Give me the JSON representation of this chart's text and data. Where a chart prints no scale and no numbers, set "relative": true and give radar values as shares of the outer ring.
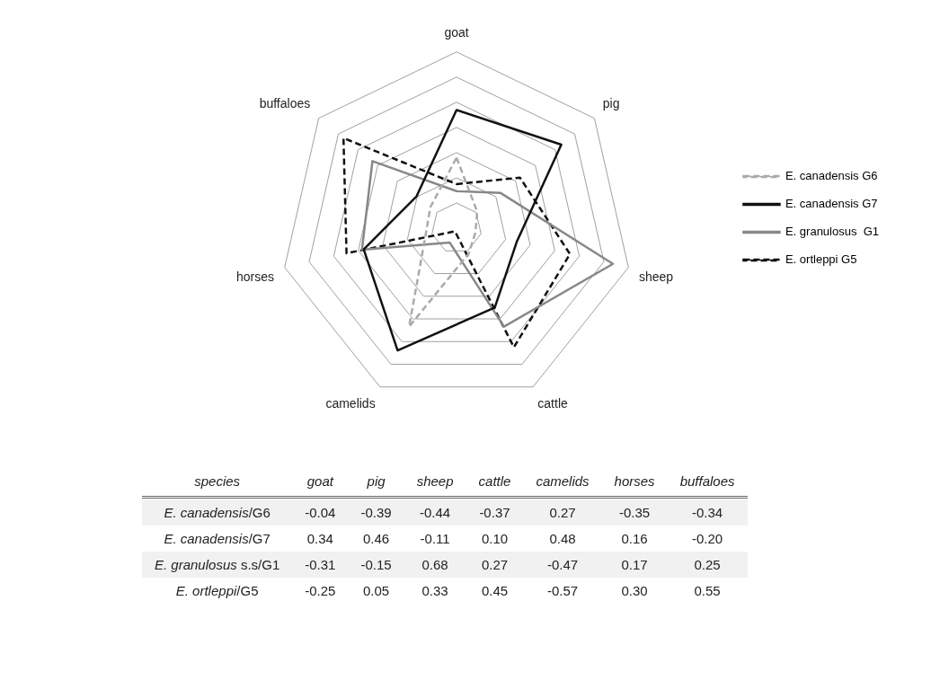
{
  "chart_data": [
    {
      "type": "radar",
      "relative": true,
      "categories": [
        "goat",
        "pig",
        "sheep",
        "cattle",
        "camelids",
        "horses",
        "buffaloes"
      ],
      "series": [
        {
          "name": "E. canadensis G6",
          "color": "#aaaaaa",
          "line_style": "dashed",
          "values": [
            0.4,
            0.15,
            0.11,
            0.16,
            0.62,
            0.18,
            0.19
          ]
        },
        {
          "name": "E. canadensis G7",
          "color": "#111111",
          "line_style": "solid",
          "values": [
            0.67,
            0.76,
            0.35,
            0.5,
            0.77,
            0.54,
            0.29
          ]
        },
        {
          "name": "E. granulosus  G1",
          "color": "#888888",
          "line_style": "solid",
          "values": [
            0.21,
            0.32,
            0.91,
            0.62,
            0.09,
            0.55,
            0.61
          ]
        },
        {
          "name": "E. ortleppi G5",
          "color": "#111111",
          "line_style": "dashed",
          "values": [
            0.25,
            0.46,
            0.66,
            0.75,
            0.02,
            0.64,
            0.82
          ]
        }
      ],
      "grid": true,
      "legend": "right",
      "marker": "none"
    },
    {
      "type": "heatmap",
      "ylabel": "species",
      "categories": [
        "goat",
        "pig",
        "sheep",
        "cattle",
        "camelids",
        "horses",
        "buffaloes"
      ],
      "y_categories": [
        "E. canadensis/G6",
        "E. canadensis/G7",
        "E. granulosus s.s/G1",
        "E. ortleppi/G5"
      ],
      "cells": [
        [
          -0.04,
          -0.39,
          -0.44,
          -0.37,
          0.27,
          -0.35,
          -0.34
        ],
        [
          0.34,
          0.46,
          -0.11,
          0.1,
          0.48,
          0.16,
          -0.2
        ],
        [
          -0.31,
          -0.15,
          0.68,
          0.27,
          -0.47,
          0.17,
          0.25
        ],
        [
          -0.25,
          0.05,
          0.33,
          0.45,
          -0.57,
          0.3,
          0.55
        ]
      ],
      "cell_labels": [
        [
          "-0.04",
          "-0.39",
          "-0.44",
          "-0.37",
          "0.27",
          "-0.35",
          "-0.34"
        ],
        [
          "0.34",
          "0.46",
          "-0.11",
          "0.10",
          "0.48",
          "0.16",
          "-0.20"
        ],
        [
          "-0.31",
          "-0.15",
          "0.68",
          "0.27",
          "-0.47",
          "0.17",
          "0.25"
        ],
        [
          "-0.25",
          "0.05",
          "0.33",
          "0.45",
          "-0.57",
          "0.30",
          "0.55"
        ]
      ],
      "data_labels": true
    }
  ]
}
